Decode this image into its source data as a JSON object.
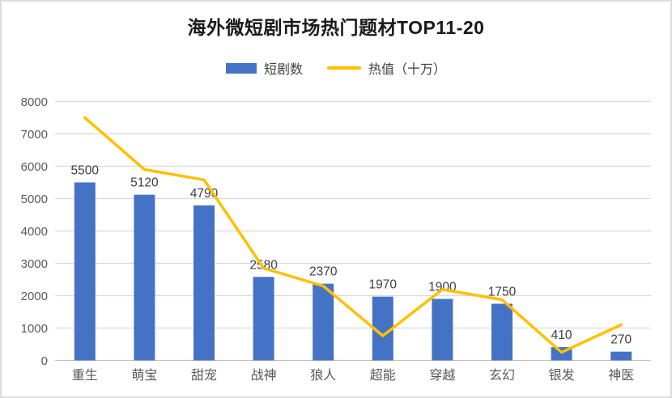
{
  "window": {
    "background": "#ffffff",
    "border_color": "#dcdcdc"
  },
  "title": "海外微短剧市场热门题材TOP11-20",
  "legend": {
    "items": [
      {
        "label": "短剧数",
        "marker": "bar-swatch",
        "color": "#4472C4"
      },
      {
        "label": "热值（十万）",
        "marker": "line-swatch",
        "color": "#FFC000"
      }
    ]
  },
  "colors": {
    "bar": "#4472C4",
    "line": "#FFC000",
    "gridline": "#D9D9D9",
    "axis_line": "#BFBFBF",
    "axis_text": "#595959",
    "data_label": "#404040",
    "title_text": "#1A1A1A"
  },
  "chart_data": {
    "type": "bar",
    "subtype": "bar+line-combo",
    "title": "海外微短剧市场热门题材TOP11-20",
    "categories": [
      "重生",
      "萌宝",
      "甜宠",
      "战神",
      "狼人",
      "超能",
      "穿越",
      "玄幻",
      "银发",
      "神医"
    ],
    "series": [
      {
        "name": "短剧数",
        "type": "bar",
        "color": "#4472C4",
        "values": [
          5500,
          5120,
          4790,
          2580,
          2370,
          1970,
          1900,
          1750,
          410,
          270
        ],
        "data_labels_visible": true
      },
      {
        "name": "热值（十万）",
        "type": "line",
        "color": "#FFC000",
        "values": [
          7500,
          5900,
          5580,
          2850,
          2300,
          760,
          2190,
          1875,
          250,
          1100
        ],
        "values_note": "estimated from gridlines, no data labels shown",
        "data_labels_visible": false
      }
    ],
    "xlabel": "",
    "ylabel": "",
    "y_axis": {
      "min": 0,
      "max": 8000,
      "step": 1000,
      "ticks": [
        "0",
        "1000",
        "2000",
        "3000",
        "4000",
        "5000",
        "6000",
        "7000",
        "8000"
      ]
    },
    "grid": true,
    "legend_position": "top"
  }
}
